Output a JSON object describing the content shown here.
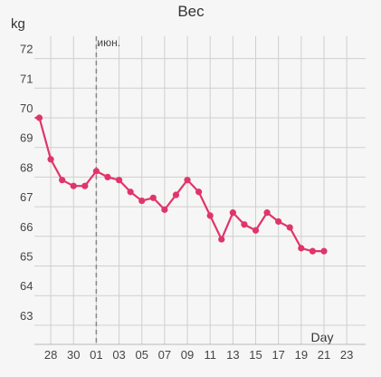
{
  "chart_data": {
    "type": "line",
    "title": "Вес",
    "ylabel": "kg",
    "xlabel": "Day",
    "ylim": [
      62.5,
      73
    ],
    "y_ticks": [
      63,
      64,
      65,
      66,
      67,
      68,
      69,
      70,
      71,
      72
    ],
    "x_ticks": [
      "28",
      "30",
      "01",
      "03",
      "05",
      "07",
      "09",
      "11",
      "13",
      "15",
      "17",
      "19",
      "21",
      "23"
    ],
    "marker": {
      "label": "июн.",
      "at_day": "01"
    },
    "grid": true,
    "colors": {
      "line": "#e0356a",
      "grid": "#cfcfcf",
      "marker": "#888888"
    },
    "series": [
      {
        "points": [
          {
            "day": "27",
            "value": 70.0
          },
          {
            "day": "27",
            "value": 70.0
          },
          {
            "day": "28",
            "value": 68.6
          },
          {
            "day": "29",
            "value": 67.9
          },
          {
            "day": "30",
            "value": 67.7
          },
          {
            "day": "31",
            "value": 67.7
          },
          {
            "day": "01",
            "value": 68.2
          },
          {
            "day": "02",
            "value": 68.0
          },
          {
            "day": "03",
            "value": 67.9
          },
          {
            "day": "04",
            "value": 67.5
          },
          {
            "day": "05",
            "value": 67.2
          },
          {
            "day": "06",
            "value": 67.3
          },
          {
            "day": "07",
            "value": 66.9
          },
          {
            "day": "08",
            "value": 67.4
          },
          {
            "day": "09",
            "value": 67.9
          },
          {
            "day": "10",
            "value": 67.5
          },
          {
            "day": "11",
            "value": 66.7
          },
          {
            "day": "12",
            "value": 65.9
          },
          {
            "day": "13",
            "value": 66.8
          },
          {
            "day": "14",
            "value": 66.4
          },
          {
            "day": "15",
            "value": 66.2
          },
          {
            "day": "16",
            "value": 66.8
          },
          {
            "day": "17",
            "value": 66.5
          },
          {
            "day": "18",
            "value": 66.3
          },
          {
            "day": "19",
            "value": 65.6
          },
          {
            "day": "20",
            "value": 65.5
          },
          {
            "day": "21",
            "value": 65.5
          }
        ]
      }
    ]
  }
}
